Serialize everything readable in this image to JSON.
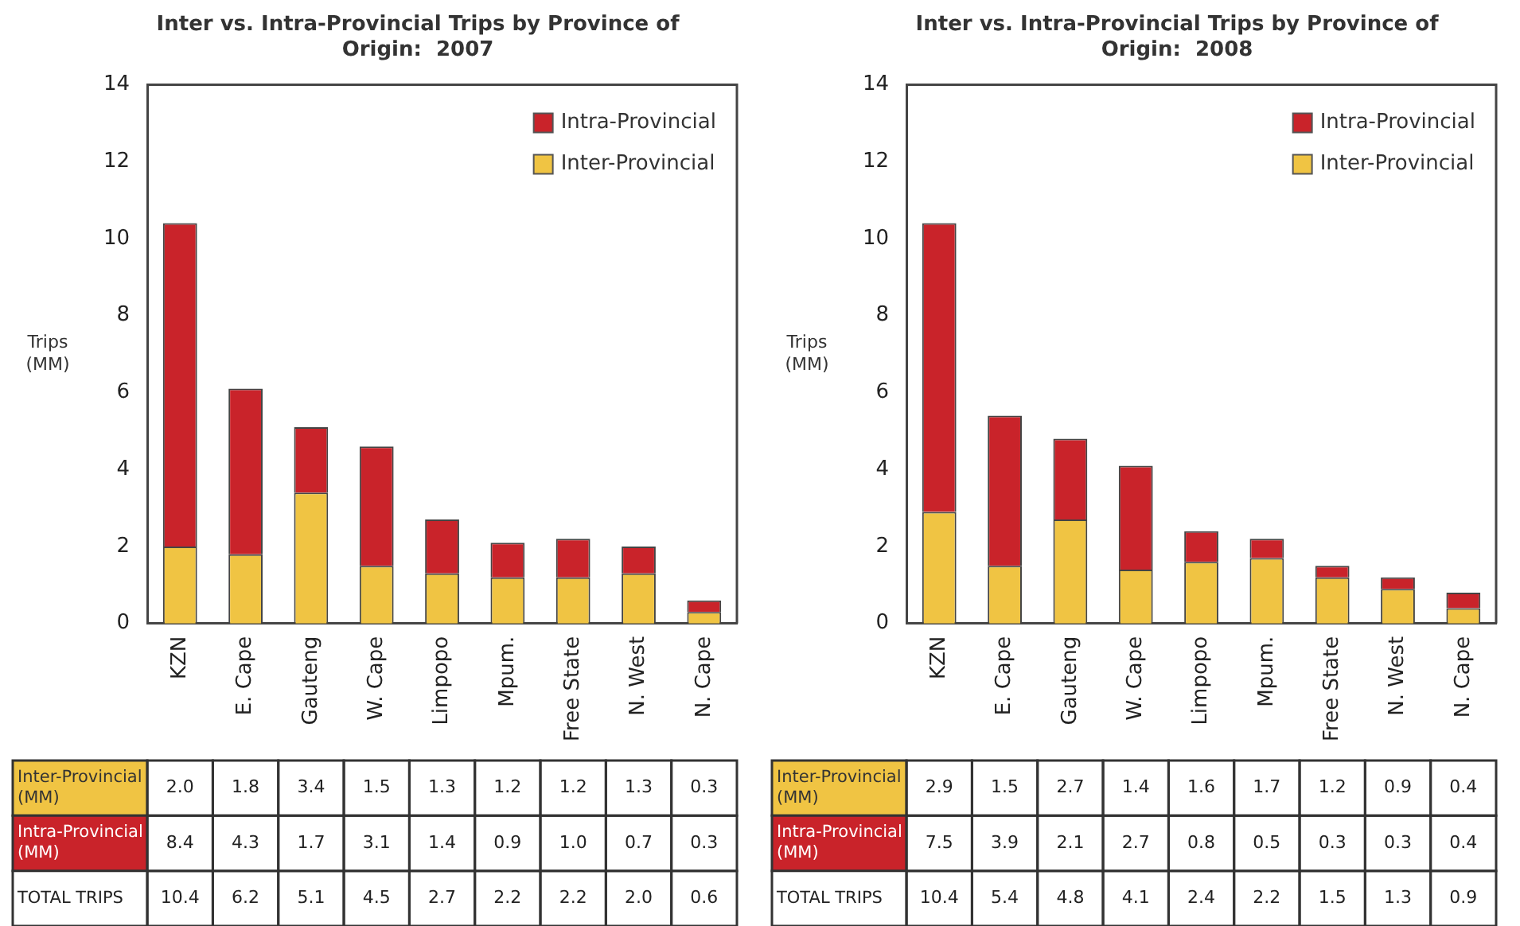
{
  "chart_data": [
    {
      "type": "bar",
      "title": "Inter vs. Intra-Provincial Trips by Province of Origin:  2007",
      "ylabel": "Trips (MM)",
      "categories": [
        "KZN",
        "E. Cape",
        "Gauteng",
        "W. Cape",
        "Limpopo",
        "Mpum.",
        "Free State",
        "N. West",
        "N. Cape"
      ],
      "series": [
        {
          "name": "Inter-Provincial",
          "color": "#f0c443",
          "values": [
            2.0,
            1.8,
            3.4,
            1.5,
            1.3,
            1.2,
            1.2,
            1.3,
            0.3
          ],
          "value_labels": [
            "2.0",
            "1.8",
            "3.4",
            "1.5",
            "1.3",
            "1.2",
            "1.2",
            "1.3",
            "0.3"
          ]
        },
        {
          "name": "Intra-Provincial",
          "color": "#c9232a",
          "values": [
            8.4,
            4.3,
            1.7,
            3.1,
            1.4,
            0.9,
            1.0,
            0.7,
            0.3
          ],
          "value_labels": [
            "8.4",
            "4.3",
            "1.7",
            "3.1",
            "1.4",
            "0.9",
            "1.0",
            "0.7",
            "0.3"
          ]
        }
      ],
      "stacked": true,
      "ylim": [
        0,
        14
      ],
      "yticks": [
        0,
        2,
        4,
        6,
        8,
        10,
        12,
        14
      ],
      "grid": false,
      "legend": "top right",
      "annotations": [
        "Inter-Provincial (MM)",
        "Intra-Provincial (MM)",
        "TOTAL TRIPS",
        "10.4",
        "6.2",
        "5.1",
        "4.5",
        "2.7",
        "2.2",
        "2.2",
        "2.0",
        "0.6"
      ]
    },
    {
      "type": "bar",
      "title": "Inter vs. Intra-Provincial Trips by Province of Origin:  2008",
      "ylabel": "Trips (MM)",
      "categories": [
        "KZN",
        "E. Cape",
        "Gauteng",
        "W. Cape",
        "Limpopo",
        "Mpum.",
        "Free State",
        "N. West",
        "N. Cape"
      ],
      "series": [
        {
          "name": "Inter-Provincial",
          "color": "#f0c443",
          "values": [
            2.9,
            1.5,
            2.7,
            1.4,
            1.6,
            1.7,
            1.2,
            0.9,
            0.4
          ],
          "value_labels": [
            "2.9",
            "1.5",
            "2.7",
            "1.4",
            "1.6",
            "1.7",
            "1.2",
            "0.9",
            "0.4"
          ]
        },
        {
          "name": "Intra-Provincial",
          "color": "#c9232a",
          "values": [
            7.5,
            3.9,
            2.1,
            2.7,
            0.8,
            0.5,
            0.3,
            0.3,
            0.4
          ],
          "value_labels": [
            "7.5",
            "3.9",
            "2.1",
            "2.7",
            "0.8",
            "0.5",
            "0.3",
            "0.3",
            "0.4"
          ]
        }
      ],
      "stacked": true,
      "ylim": [
        0,
        14
      ],
      "yticks": [
        0,
        2,
        4,
        6,
        8,
        10,
        12,
        14
      ],
      "grid": false,
      "legend": "top right",
      "annotations": [
        "Inter-Provincial (MM)",
        "Intra-Provincial (MM)",
        "TOTAL TRIPS",
        "10.4",
        "5.4",
        "4.8",
        "4.1",
        "2.4",
        "2.2",
        "1.5",
        "1.3",
        "0.9"
      ]
    }
  ]
}
